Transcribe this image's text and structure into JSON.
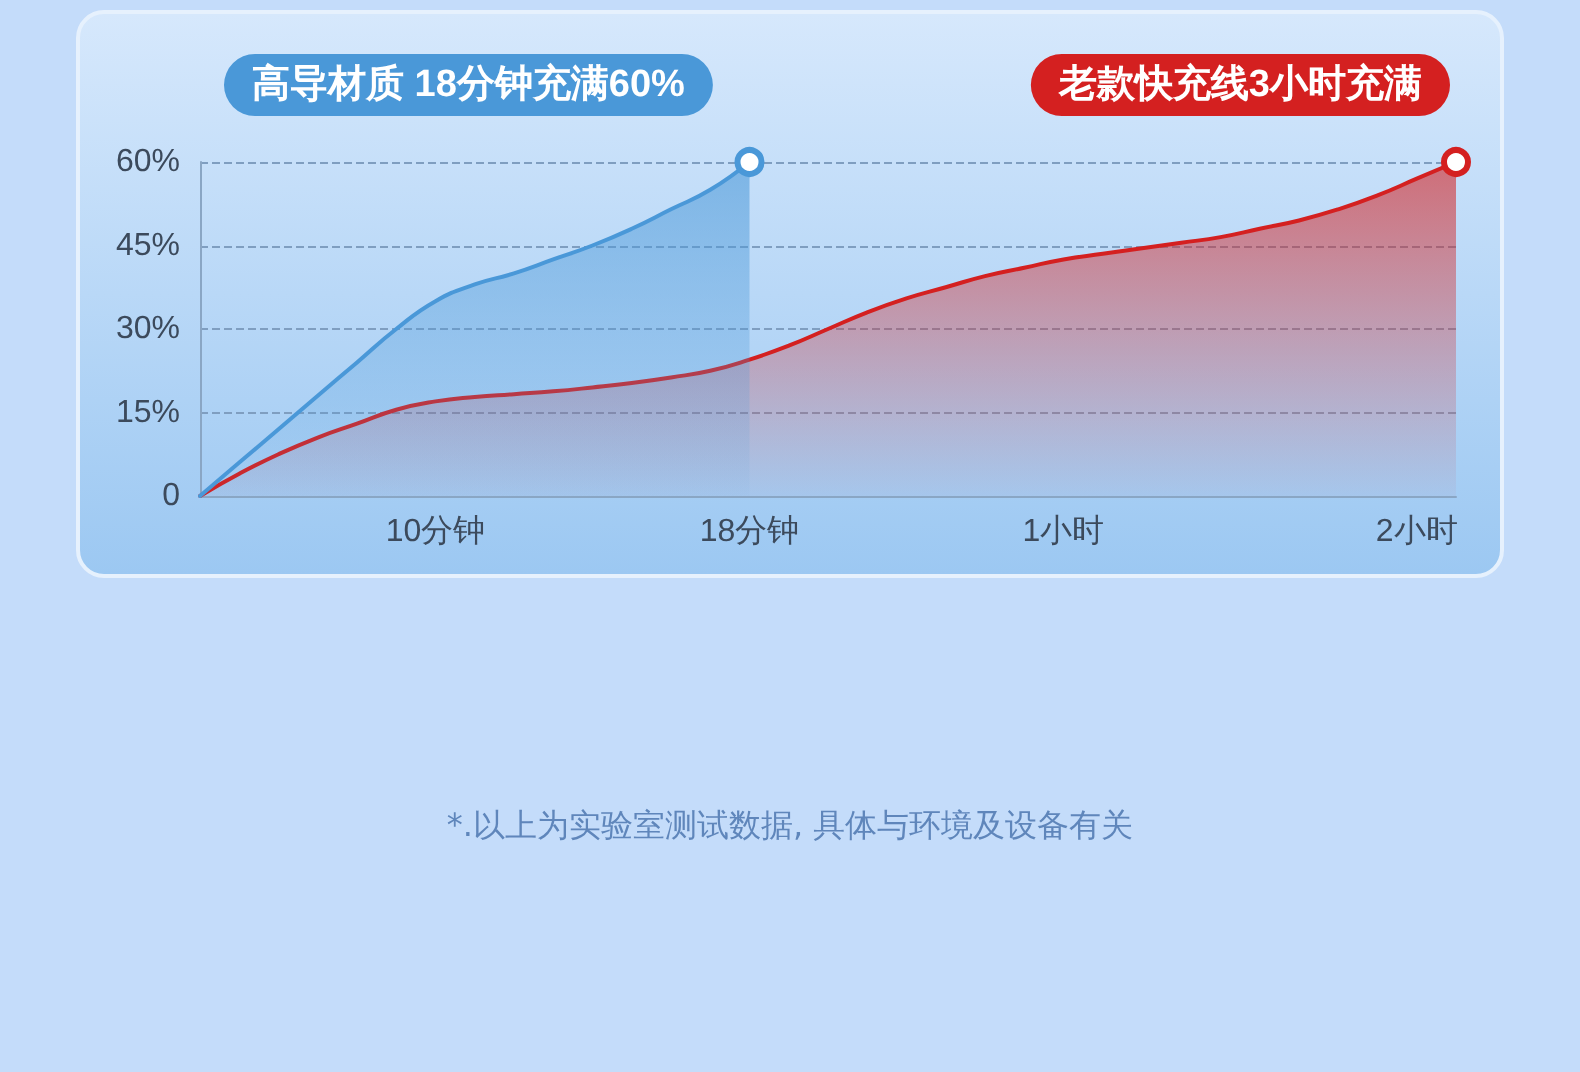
{
  "chart_data": {
    "type": "area",
    "categories": [
      null,
      null,
      null,
      null,
      null,
      null,
      "10分钟",
      null,
      null,
      null,
      null,
      null,
      null,
      null,
      "18分钟",
      null,
      null,
      null,
      null,
      null,
      null,
      null,
      "1小时",
      null,
      null,
      null,
      null,
      null,
      null,
      null,
      null,
      "2小时",
      null
    ],
    "ylim": [
      0,
      60
    ],
    "yticks": [
      {
        "value": 0,
        "label": "0"
      },
      {
        "value": 15,
        "label": "15%"
      },
      {
        "value": 30,
        "label": "30%"
      },
      {
        "value": 45,
        "label": "45%"
      },
      {
        "value": 60,
        "label": "60%"
      }
    ],
    "series": [
      {
        "name": "高导材质 18分钟充满60%",
        "color": "#4a98d8",
        "values": [
          0,
          6,
          12,
          18,
          24,
          30,
          35,
          38,
          40,
          42.5,
          45,
          48,
          51.5,
          55,
          60,
          null,
          null,
          null,
          null,
          null,
          null,
          null,
          null,
          null,
          null,
          null,
          null,
          null,
          null,
          null,
          null,
          null,
          null
        ]
      },
      {
        "name": "老款快充线3小时充满",
        "color": "#d42020",
        "values": [
          0,
          4,
          7.5,
          10.5,
          13,
          15.5,
          17,
          17.8,
          18.3,
          18.8,
          19.5,
          20.3,
          21.3,
          22.5,
          24.5,
          27,
          30,
          33,
          35.5,
          37.5,
          39.5,
          41,
          42.5,
          43.5,
          44.5,
          45.5,
          46.5,
          48,
          49.5,
          51.5,
          54,
          57,
          60
        ]
      }
    ],
    "grid": "y",
    "legend": "top",
    "annotations": [
      "*.以上为实验室测试数据, 具体与环境及设备有关"
    ]
  }
}
